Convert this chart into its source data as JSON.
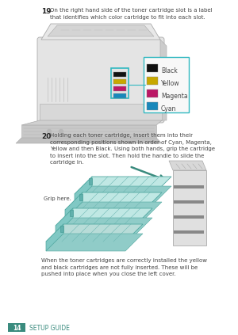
{
  "bg_color": "#ffffff",
  "footer_bg": "#3a8b7e",
  "footer_text": "14",
  "footer_label": "SETUP GUIDE",
  "footer_text_color": "#ffffff",
  "footer_label_color": "#3a8b7e",
  "step19_num": "19",
  "step19_text": "On the right hand side of the toner cartridge slot is a label\nthat identifies which color cartridge to fit into each slot.",
  "step20_num": "20",
  "step20_text": "Holding each toner cartridge, insert them into their\ncorresponding positions shown in order of Cyan, Magenta,\nYellow and then Black. Using both hands, grip the cartridge\nto insert into the slot. Then hold the handle to slide the\ncartridge in.",
  "bottom_text": "When the toner cartridges are correctly installed the yellow\nand black cartridges are not fully inserted. These will be\npushed into place when you close the left cover.",
  "grip_label": "Grip here.",
  "color_labels": [
    "Black",
    "Yellow",
    "Magenta",
    "Cyan"
  ],
  "teal": "#3a8b7e",
  "light_teal": "#c0e8e4",
  "mid_teal": "#80c8c4",
  "dark_teal": "#40a090",
  "cyan_border": "#30b8c0",
  "text_color": "#444444",
  "step_num_color": "#222222",
  "printer_body": "#e0e0e0",
  "printer_dark": "#b8b8b8",
  "printer_light": "#f0f0f0",
  "font_size_body": 5.0,
  "font_size_step": 6.5,
  "font_size_footer": 5.5,
  "font_size_color_label": 5.5
}
